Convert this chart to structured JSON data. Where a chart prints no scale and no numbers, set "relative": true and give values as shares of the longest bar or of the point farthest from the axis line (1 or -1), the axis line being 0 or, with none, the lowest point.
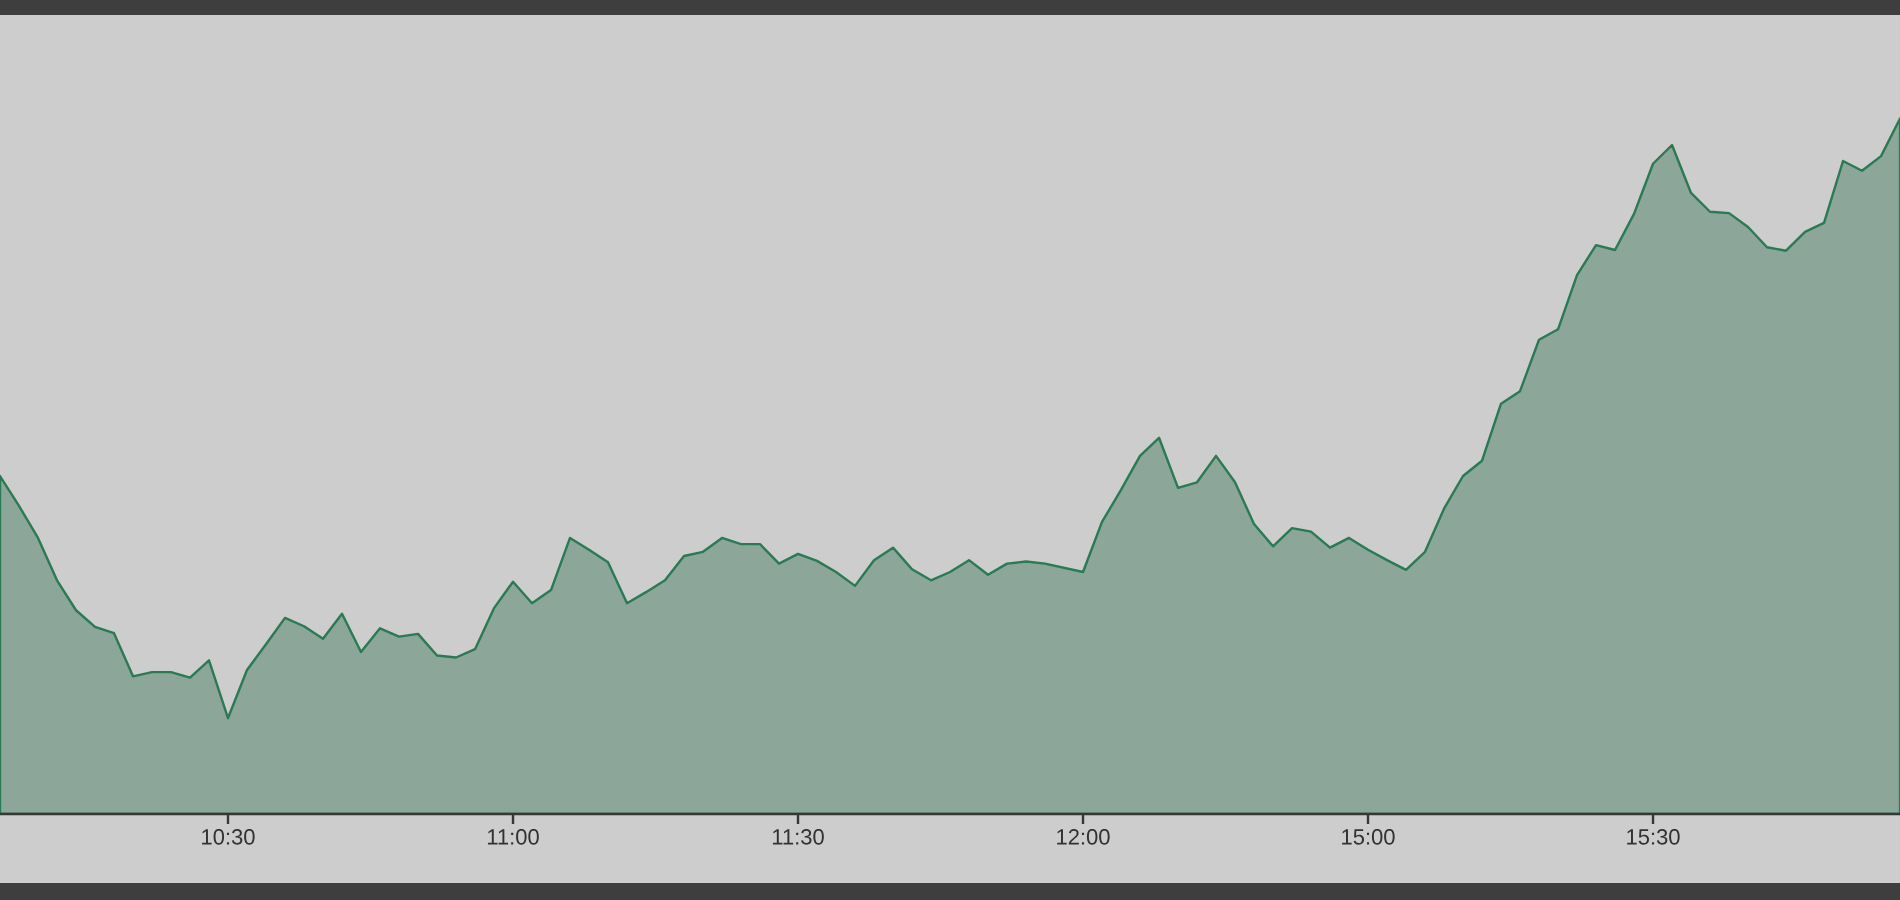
{
  "chart_data": {
    "type": "area",
    "relative": true,
    "color": "#8da69a",
    "categories": [
      null,
      null,
      null,
      null,
      null,
      null,
      null,
      null,
      null,
      null,
      null,
      null,
      "10:30",
      null,
      null,
      null,
      null,
      null,
      null,
      null,
      null,
      null,
      null,
      null,
      null,
      null,
      null,
      "11:00",
      null,
      null,
      null,
      null,
      null,
      null,
      null,
      null,
      null,
      null,
      null,
      null,
      null,
      null,
      "11:30",
      null,
      null,
      null,
      null,
      null,
      null,
      null,
      null,
      null,
      null,
      null,
      null,
      null,
      null,
      "12:00",
      null,
      null,
      null,
      null,
      null,
      null,
      null,
      null,
      null,
      null,
      null,
      null,
      null,
      null,
      "15:00",
      null,
      null,
      null,
      null,
      null,
      null,
      null,
      null,
      null,
      null,
      null,
      null,
      null,
      null,
      "15:30",
      null,
      null,
      null,
      null,
      null,
      null,
      null,
      null,
      null,
      null,
      null,
      null,
      null
    ],
    "values": [
      0.486,
      0.443,
      0.397,
      0.336,
      0.293,
      0.269,
      0.26,
      0.198,
      0.204,
      0.204,
      0.196,
      0.221,
      0.138,
      0.207,
      0.244,
      0.282,
      0.27,
      0.252,
      0.288,
      0.233,
      0.267,
      0.255,
      0.259,
      0.228,
      0.225,
      0.237,
      0.296,
      0.334,
      0.303,
      0.322,
      0.397,
      0.38,
      0.362,
      0.303,
      0.319,
      0.336,
      0.371,
      0.377,
      0.397,
      0.388,
      0.388,
      0.36,
      0.374,
      0.364,
      0.348,
      0.328,
      0.365,
      0.383,
      0.352,
      0.336,
      0.348,
      0.365,
      0.344,
      0.36,
      0.363,
      0.36,
      0.354,
      0.348,
      0.42,
      0.466,
      0.515,
      0.541,
      0.469,
      0.477,
      0.515,
      0.477,
      0.417,
      0.385,
      0.411,
      0.406,
      0.383,
      0.397,
      0.38,
      0.365,
      0.351,
      0.377,
      0.439,
      0.486,
      0.508,
      0.59,
      0.608,
      0.682,
      0.697,
      0.775,
      0.818,
      0.811,
      0.863,
      0.935,
      0.962,
      0.893,
      0.866,
      0.864,
      0.844,
      0.815,
      0.81,
      0.837,
      0.85,
      0.939,
      0.925,
      0.946,
      1.0
    ]
  }
}
